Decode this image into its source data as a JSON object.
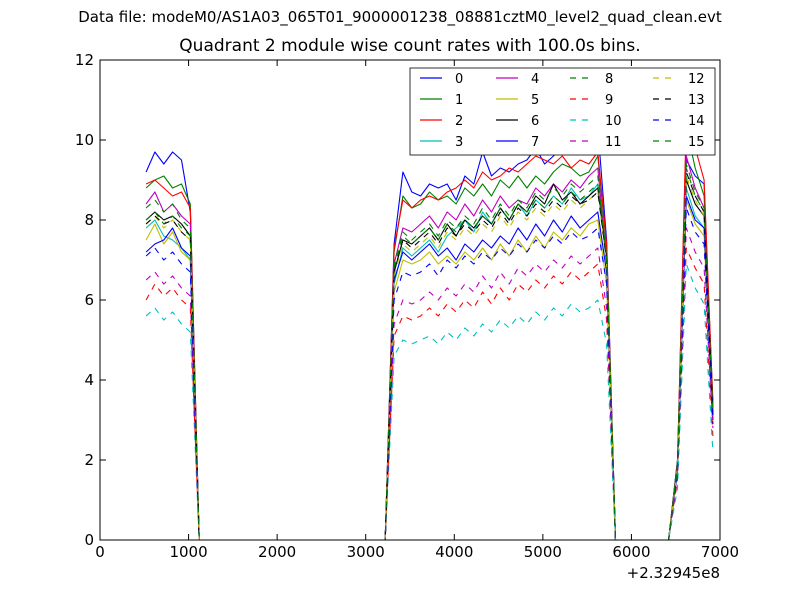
{
  "figure": {
    "suptitle": "Data file: modeM0/AS1A03_065T01_9000001238_08881cztM0_level2_quad_clean.evt"
  },
  "chart_data": {
    "type": "line",
    "title": "Quadrant 2 module wise count rates with 100.0s bins.",
    "xlabel": "",
    "ylabel": "",
    "x_offset_label": "+2.32945e8",
    "xlim": [
      0,
      7000
    ],
    "ylim": [
      0,
      12
    ],
    "xticks": [
      0,
      1000,
      2000,
      3000,
      4000,
      5000,
      6000,
      7000
    ],
    "xtick_labels": [
      "0",
      "1000",
      "2000",
      "3000",
      "4000",
      "5000",
      "6000",
      "7000"
    ],
    "yticks": [
      0,
      2,
      4,
      6,
      8,
      10,
      12
    ],
    "ytick_labels": [
      "0",
      "2",
      "4",
      "6",
      "8",
      "10",
      "12"
    ],
    "grid": false,
    "legend": {
      "placement": "top-right",
      "columns": 4
    },
    "x": [
      520,
      620,
      720,
      820,
      920,
      1020,
      1120,
      1220,
      3220,
      3320,
      3420,
      3520,
      3620,
      3720,
      3820,
      3920,
      4020,
      4120,
      4220,
      4320,
      4420,
      4520,
      4620,
      4720,
      4820,
      4920,
      5020,
      5120,
      5220,
      5320,
      5420,
      5520,
      5620,
      5720,
      5820,
      5920,
      6420,
      6520,
      6620,
      6720,
      6820,
      6920
    ],
    "series": [
      {
        "name": "0",
        "color": "#0000ff",
        "dash": "solid",
        "values": [
          9.2,
          9.7,
          9.4,
          9.7,
          9.5,
          8.2,
          0,
          0,
          0,
          7.4,
          9.2,
          8.7,
          8.6,
          8.9,
          8.8,
          8.9,
          8.5,
          9.1,
          8.9,
          9.7,
          9.1,
          9.3,
          9.2,
          9.4,
          9.5,
          9.8,
          9.4,
          9.6,
          9.9,
          10.2,
          9.9,
          10.3,
          10.3,
          7.5,
          0,
          0,
          0,
          2.0,
          9.5,
          9.1,
          8.9,
          3.3
        ]
      },
      {
        "name": "1",
        "color": "#008000",
        "dash": "solid",
        "values": [
          8.8,
          9.0,
          9.1,
          8.8,
          8.9,
          8.4,
          0,
          0,
          0,
          7.2,
          8.6,
          8.3,
          8.4,
          8.7,
          8.5,
          8.6,
          8.4,
          8.8,
          8.6,
          8.9,
          8.6,
          9.0,
          8.8,
          9.1,
          8.8,
          9.1,
          8.9,
          9.2,
          9.4,
          9.3,
          9.1,
          9.2,
          9.6,
          7.3,
          0,
          0,
          0,
          2.0,
          10.3,
          9.3,
          8.6,
          3.5
        ]
      },
      {
        "name": "2",
        "color": "#ff0000",
        "dash": "solid",
        "values": [
          8.9,
          9.0,
          8.8,
          8.6,
          8.7,
          8.3,
          0,
          0,
          0,
          7.3,
          8.5,
          8.3,
          8.5,
          8.6,
          8.5,
          8.7,
          8.8,
          9.0,
          8.8,
          9.2,
          9.0,
          9.1,
          9.3,
          9.2,
          9.4,
          9.6,
          9.5,
          9.4,
          9.6,
          9.3,
          9.5,
          9.4,
          9.7,
          7.4,
          0,
          0,
          0,
          1.9,
          10.5,
          9.8,
          9.0,
          3.4
        ]
      },
      {
        "name": "3",
        "color": "#00bfbf",
        "dash": "solid",
        "values": [
          7.8,
          8.0,
          7.6,
          7.5,
          7.3,
          7.0,
          0,
          0,
          0,
          6.4,
          7.3,
          7.1,
          7.3,
          7.5,
          7.2,
          7.6,
          7.8,
          8.0,
          7.7,
          8.2,
          7.9,
          8.3,
          8.0,
          8.4,
          8.1,
          8.5,
          8.3,
          8.6,
          8.4,
          8.8,
          8.5,
          8.6,
          8.9,
          6.9,
          0,
          0,
          0,
          1.8,
          8.8,
          8.1,
          7.8,
          3.0
        ]
      },
      {
        "name": "4",
        "color": "#bf00bf",
        "dash": "solid",
        "values": [
          8.4,
          8.7,
          8.2,
          8.4,
          8.1,
          7.9,
          0,
          0,
          0,
          6.9,
          7.8,
          7.7,
          7.9,
          8.1,
          7.8,
          8.2,
          8.0,
          8.4,
          8.1,
          8.5,
          8.2,
          8.6,
          8.3,
          8.5,
          8.4,
          8.8,
          8.6,
          8.9,
          8.7,
          9.0,
          8.8,
          9.1,
          9.3,
          7.0,
          0,
          0,
          0,
          1.9,
          9.6,
          8.8,
          8.3,
          3.2
        ]
      },
      {
        "name": "5",
        "color": "#bfbf00",
        "dash": "solid",
        "values": [
          7.5,
          7.9,
          7.4,
          7.7,
          7.2,
          7.0,
          0,
          0,
          0,
          6.2,
          7.0,
          6.9,
          7.0,
          7.2,
          6.9,
          7.1,
          6.9,
          7.2,
          7.0,
          7.3,
          7.0,
          7.4,
          7.1,
          7.5,
          7.2,
          7.6,
          7.3,
          7.7,
          7.5,
          7.8,
          7.6,
          7.9,
          8.0,
          6.4,
          0,
          0,
          0,
          1.7,
          8.5,
          7.9,
          7.6,
          2.9
        ]
      },
      {
        "name": "6",
        "color": "#000000",
        "dash": "solid",
        "values": [
          8.0,
          8.2,
          8.0,
          8.1,
          7.9,
          7.6,
          0,
          0,
          0,
          6.7,
          7.5,
          7.4,
          7.6,
          7.8,
          7.5,
          7.9,
          7.6,
          8.0,
          7.8,
          8.1,
          7.9,
          8.3,
          8.0,
          8.4,
          8.2,
          8.6,
          8.4,
          8.9,
          8.5,
          8.7,
          8.4,
          8.6,
          8.8,
          7.0,
          0,
          0,
          0,
          1.8,
          9.0,
          8.4,
          8.1,
          3.1
        ]
      },
      {
        "name": "7",
        "color": "#0000ff",
        "dash": "solid",
        "values": [
          7.2,
          7.4,
          7.5,
          7.8,
          7.3,
          7.1,
          0,
          0,
          0,
          6.5,
          7.2,
          7.0,
          7.2,
          7.4,
          7.1,
          7.3,
          7.0,
          7.4,
          7.2,
          7.5,
          7.3,
          7.6,
          7.4,
          7.8,
          7.5,
          7.9,
          7.6,
          8.0,
          7.7,
          8.1,
          7.8,
          8.0,
          8.2,
          6.7,
          0,
          0,
          0,
          1.7,
          8.6,
          8.0,
          7.8,
          3.0
        ]
      },
      {
        "name": "8",
        "color": "#008000",
        "dash": "dash",
        "values": [
          8.3,
          8.5,
          8.2,
          8.4,
          8.0,
          7.8,
          0,
          0,
          0,
          6.9,
          7.7,
          7.5,
          7.7,
          7.9,
          7.6,
          8.0,
          7.8,
          8.1,
          7.9,
          8.3,
          8.0,
          8.4,
          8.1,
          8.5,
          8.3,
          8.7,
          8.5,
          8.8,
          8.6,
          8.9,
          8.7,
          8.9,
          9.1,
          7.1,
          0,
          0,
          0,
          1.9,
          9.4,
          8.7,
          8.3,
          3.2
        ]
      },
      {
        "name": "9",
        "color": "#ff0000",
        "dash": "dash",
        "values": [
          6.0,
          6.4,
          6.1,
          6.3,
          6.0,
          5.8,
          0,
          0,
          0,
          5.1,
          5.6,
          5.5,
          5.6,
          5.8,
          5.6,
          5.9,
          5.7,
          6.0,
          5.8,
          6.2,
          5.9,
          6.3,
          6.0,
          6.4,
          6.2,
          6.5,
          6.3,
          6.6,
          6.4,
          6.7,
          6.5,
          6.7,
          6.9,
          5.5,
          0,
          0,
          0,
          1.5,
          7.3,
          6.8,
          6.4,
          2.6
        ]
      },
      {
        "name": "10",
        "color": "#00bfbf",
        "dash": "dash",
        "values": [
          5.6,
          5.8,
          5.5,
          5.7,
          5.4,
          5.2,
          0,
          0,
          0,
          4.6,
          5.0,
          4.9,
          5.0,
          5.1,
          4.9,
          5.2,
          5.0,
          5.3,
          5.1,
          5.4,
          5.2,
          5.5,
          5.3,
          5.6,
          5.4,
          5.7,
          5.5,
          5.8,
          5.6,
          5.9,
          5.7,
          5.8,
          6.0,
          4.9,
          0,
          0,
          0,
          1.3,
          6.9,
          6.3,
          5.9,
          2.2
        ]
      },
      {
        "name": "11",
        "color": "#bf00bf",
        "dash": "dash",
        "values": [
          6.5,
          6.7,
          6.4,
          6.6,
          6.3,
          6.1,
          0,
          0,
          0,
          5.4,
          6.0,
          5.9,
          6.0,
          6.2,
          6.0,
          6.3,
          6.1,
          6.4,
          6.2,
          6.6,
          6.3,
          6.7,
          6.4,
          6.8,
          6.6,
          6.9,
          6.7,
          7.0,
          6.8,
          7.1,
          6.9,
          7.1,
          7.3,
          5.8,
          0,
          0,
          0,
          1.6,
          7.8,
          7.2,
          6.8,
          2.8
        ]
      },
      {
        "name": "12",
        "color": "#bfbf00",
        "dash": "dash",
        "values": [
          7.9,
          8.1,
          7.8,
          8.0,
          7.7,
          7.5,
          0,
          0,
          0,
          6.6,
          7.4,
          7.2,
          7.4,
          7.6,
          7.3,
          7.7,
          7.5,
          7.8,
          7.6,
          7.9,
          7.7,
          8.1,
          7.8,
          8.2,
          8.0,
          8.3,
          8.1,
          8.4,
          8.2,
          8.5,
          8.3,
          8.5,
          8.7,
          6.9,
          0,
          0,
          0,
          1.8,
          9.1,
          8.5,
          8.1,
          3.1
        ]
      },
      {
        "name": "13",
        "color": "#000000",
        "dash": "dash",
        "values": [
          7.9,
          8.1,
          7.9,
          8.0,
          7.7,
          7.5,
          0,
          0,
          0,
          6.7,
          7.5,
          7.3,
          7.5,
          7.7,
          7.4,
          7.8,
          7.6,
          7.9,
          7.7,
          8.0,
          7.8,
          8.2,
          7.9,
          8.3,
          8.1,
          8.4,
          8.2,
          8.5,
          8.3,
          8.6,
          8.4,
          8.5,
          8.7,
          7.0,
          0,
          0,
          0,
          1.8,
          9.2,
          8.6,
          8.2,
          3.1
        ]
      },
      {
        "name": "14",
        "color": "#0000ff",
        "dash": "dash",
        "values": [
          7.1,
          7.3,
          7.0,
          7.2,
          6.9,
          6.7,
          0,
          0,
          0,
          6.0,
          6.7,
          6.6,
          6.7,
          6.9,
          6.6,
          7.0,
          6.8,
          7.1,
          6.9,
          7.2,
          7.0,
          7.3,
          7.1,
          7.4,
          7.2,
          7.5,
          7.3,
          7.6,
          7.4,
          7.7,
          7.5,
          7.6,
          7.8,
          6.4,
          0,
          0,
          0,
          1.7,
          8.3,
          7.7,
          7.4,
          2.9
        ]
      },
      {
        "name": "15",
        "color": "#008000",
        "dash": "dash",
        "values": [
          8.0,
          8.2,
          7.9,
          8.1,
          7.8,
          7.6,
          0,
          0,
          0,
          6.8,
          7.6,
          7.4,
          7.6,
          7.8,
          7.5,
          7.9,
          7.7,
          8.0,
          7.8,
          8.1,
          7.9,
          8.3,
          8.0,
          8.4,
          8.2,
          8.5,
          8.3,
          8.6,
          8.4,
          8.7,
          8.5,
          8.7,
          8.9,
          7.1,
          0,
          0,
          0,
          1.8,
          9.3,
          8.6,
          8.2,
          3.2
        ]
      }
    ]
  }
}
